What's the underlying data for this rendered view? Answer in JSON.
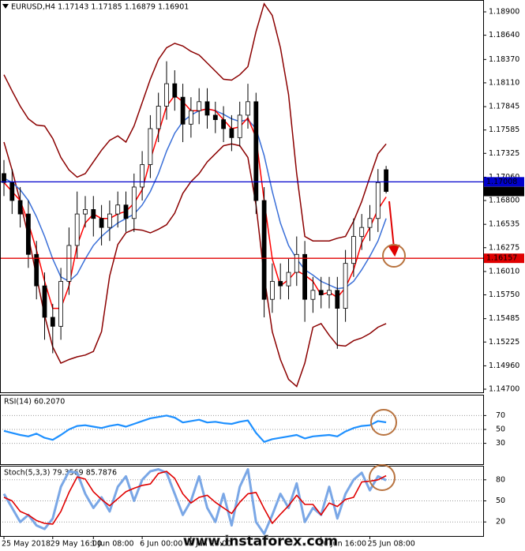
{
  "chart_data": [
    {
      "type": "candlestick",
      "title": "EURUSD,H4  1.17143 1.17185 1.16879 1.16901",
      "categories": [
        "25 May 2018",
        null,
        null,
        null,
        null,
        null,
        "29 May 16:00",
        null,
        null,
        null,
        null,
        "1 Jun 08:00",
        null,
        null,
        null,
        null,
        null,
        "6 Jun 00:00",
        null,
        null,
        null,
        null,
        null,
        "8 Jun 16:00",
        null,
        null,
        null,
        null,
        null,
        null,
        null,
        null,
        null,
        null,
        null,
        null,
        null,
        null,
        null,
        "20 Jun 16:00",
        null,
        null,
        null,
        null,
        null,
        "25 Jun 08:00",
        null,
        null
      ],
      "open": [
        1.171,
        1.17,
        1.168,
        1.1665,
        1.162,
        1.1585,
        1.155,
        1.154,
        1.159,
        1.163,
        1.1665,
        1.167,
        1.166,
        1.165,
        1.1665,
        1.1675,
        1.166,
        1.1695,
        1.172,
        1.176,
        1.1785,
        1.181,
        1.1795,
        1.1765,
        1.178,
        1.179,
        1.1775,
        1.177,
        1.176,
        1.175,
        1.1775,
        1.179,
        1.168,
        1.157,
        1.159,
        1.1585,
        1.16,
        1.162,
        1.157,
        1.158,
        1.1575,
        1.158,
        1.156,
        1.161,
        1.164,
        1.165,
        1.166,
        1.17143
      ],
      "high": [
        1.1725,
        1.1715,
        1.1695,
        1.168,
        1.1635,
        1.16,
        1.1565,
        1.1605,
        1.165,
        1.169,
        1.1685,
        1.1685,
        1.1675,
        1.168,
        1.169,
        1.169,
        1.171,
        1.1735,
        1.1775,
        1.18,
        1.1835,
        1.1825,
        1.181,
        1.1795,
        1.1805,
        1.1805,
        1.179,
        1.1785,
        1.1775,
        1.179,
        1.181,
        1.18,
        1.1695,
        1.161,
        1.161,
        1.1615,
        1.164,
        1.1635,
        1.1595,
        1.1595,
        1.1595,
        1.1595,
        1.1625,
        1.166,
        1.1665,
        1.1675,
        1.1715,
        1.17185
      ],
      "low": [
        1.1685,
        1.1665,
        1.165,
        1.1605,
        1.157,
        1.1525,
        1.151,
        1.1525,
        1.1575,
        1.1615,
        1.165,
        1.164,
        1.163,
        1.1635,
        1.165,
        1.1645,
        1.1645,
        1.168,
        1.1705,
        1.1745,
        1.177,
        1.178,
        1.1745,
        1.175,
        1.1765,
        1.176,
        1.1755,
        1.1745,
        1.1735,
        1.174,
        1.176,
        1.1665,
        1.155,
        1.1555,
        1.157,
        1.157,
        1.1585,
        1.1545,
        1.1555,
        1.156,
        1.156,
        1.1515,
        1.1545,
        1.1595,
        1.1625,
        1.1635,
        1.1645,
        1.16879
      ],
      "close": [
        1.17,
        1.168,
        1.1665,
        1.162,
        1.1585,
        1.155,
        1.154,
        1.159,
        1.163,
        1.1665,
        1.167,
        1.166,
        1.165,
        1.1665,
        1.1675,
        1.166,
        1.1695,
        1.172,
        1.176,
        1.1785,
        1.181,
        1.1795,
        1.1765,
        1.178,
        1.179,
        1.1775,
        1.177,
        1.176,
        1.175,
        1.1775,
        1.179,
        1.168,
        1.157,
        1.159,
        1.1585,
        1.16,
        1.162,
        1.157,
        1.158,
        1.1575,
        1.158,
        1.156,
        1.161,
        1.164,
        1.165,
        1.166,
        1.17,
        1.16901
      ],
      "overlays": [
        {
          "color": "#8b0000",
          "values": [
            1.182,
            1.1802,
            1.1785,
            1.1771,
            1.1764,
            1.1763,
            1.1749,
            1.1728,
            1.1714,
            1.1706,
            1.171,
            1.1723,
            1.1736,
            1.1747,
            1.1752,
            1.1745,
            1.1763,
            1.1789,
            1.1815,
            1.1837,
            1.185,
            1.1855,
            1.1852,
            1.1846,
            1.1842,
            1.1833,
            1.1824,
            1.1815,
            1.1814,
            1.182,
            1.1829,
            1.1868,
            1.1899,
            1.1886,
            1.185,
            1.1798,
            1.171,
            1.164,
            1.1635,
            1.1635,
            1.1635,
            1.1638,
            1.164,
            1.1657,
            1.1679,
            1.1706,
            1.1732,
            1.1743
          ]
        },
        {
          "color": "#8b0000",
          "values": [
            1.1745,
            1.1714,
            1.1679,
            1.164,
            1.1596,
            1.1552,
            1.1517,
            1.1499,
            1.1503,
            1.1506,
            1.1508,
            1.1512,
            1.1534,
            1.1596,
            1.1631,
            1.1644,
            1.1648,
            1.1647,
            1.1644,
            1.1648,
            1.1653,
            1.1666,
            1.1688,
            1.1701,
            1.171,
            1.1723,
            1.1732,
            1.1741,
            1.1743,
            1.1741,
            1.1728,
            1.1675,
            1.1596,
            1.1534,
            1.1503,
            1.1481,
            1.1473,
            1.1499,
            1.1539,
            1.1543,
            1.153,
            1.1519,
            1.1518,
            1.1524,
            1.1527,
            1.1532,
            1.1539,
            1.1543
          ]
        },
        {
          "color": "#3a6fd8",
          "values": [
            1.1705,
            1.17,
            1.1692,
            1.168,
            1.1662,
            1.164,
            1.1615,
            1.1595,
            1.159,
            1.1598,
            1.1615,
            1.163,
            1.164,
            1.1648,
            1.1655,
            1.166,
            1.1665,
            1.1675,
            1.169,
            1.171,
            1.1735,
            1.1755,
            1.1768,
            1.1775,
            1.178,
            1.1782,
            1.178,
            1.1776,
            1.1771,
            1.1768,
            1.177,
            1.176,
            1.173,
            1.169,
            1.1655,
            1.163,
            1.1615,
            1.1603,
            1.1597,
            1.159,
            1.1586,
            1.1582,
            1.1583,
            1.159,
            1.1603,
            1.1618,
            1.1635,
            1.166
          ]
        },
        {
          "color": "#ff0000",
          "values": [
            1.17,
            1.169,
            1.168,
            1.1655,
            1.1625,
            1.159,
            1.156,
            1.156,
            1.1585,
            1.163,
            1.1655,
            1.1665,
            1.166,
            1.166,
            1.1665,
            1.1668,
            1.1677,
            1.1692,
            1.1725,
            1.1755,
            1.1785,
            1.1797,
            1.179,
            1.178,
            1.178,
            1.1782,
            1.178,
            1.177,
            1.176,
            1.1762,
            1.1772,
            1.175,
            1.168,
            1.1615,
            1.1585,
            1.1592,
            1.1602,
            1.1597,
            1.159,
            1.1575,
            1.1578,
            1.1572,
            1.1583,
            1.1603,
            1.1633,
            1.165,
            1.167,
            1.1684
          ]
        }
      ],
      "ylim": [
        1.14665,
        1.19032
      ],
      "yticks": [
        {
          "value": 1.189,
          "label": "1.18900"
        },
        {
          "value": 1.1864,
          "label": "1.18640"
        },
        {
          "value": 1.1837,
          "label": "1.18370"
        },
        {
          "value": 1.1811,
          "label": "1.18110"
        },
        1.17845,
        1.17585,
        1.17325,
        {
          "value": 1.1706,
          "label": "1.17060"
        },
        {
          "value": 1.168,
          "label": "1.16800"
        },
        1.16535,
        1.16275,
        {
          "value": 1.1601,
          "label": "1.16010"
        },
        {
          "value": 1.1575,
          "label": "1.15750"
        },
        1.15485,
        1.15225,
        {
          "value": 1.1496,
          "label": "1.14960"
        },
        {
          "value": 1.147,
          "label": "1.14700"
        }
      ],
      "levels": [
        {
          "value": 1.17008,
          "color": "#0000cc"
        },
        {
          "value": 1.16157,
          "color": "#e00000"
        }
      ],
      "last_price": 1.16901
    },
    {
      "type": "line",
      "title": "RSI(14) 60.2070",
      "series": [
        {
          "color": "#1e90ff",
          "values": [
            48,
            45,
            42,
            40,
            44,
            38,
            35,
            42,
            50,
            55,
            56,
            54,
            52,
            55,
            57,
            54,
            58,
            62,
            66,
            68,
            70,
            67,
            60,
            62,
            64,
            60,
            61,
            59,
            58,
            61,
            63,
            45,
            32,
            36,
            38,
            40,
            42,
            37,
            40,
            41,
            42,
            40,
            47,
            52,
            55,
            56,
            62,
            60.207
          ]
        }
      ],
      "ylim": [
        0,
        100
      ],
      "yticks": [
        70,
        50,
        30
      ],
      "grid": true
    },
    {
      "type": "line",
      "title": "Stoch(5,3,3) 79.3569 85.7876",
      "series": [
        {
          "color": "#7aa7e6",
          "values": [
            60,
            40,
            20,
            30,
            15,
            10,
            25,
            70,
            92,
            90,
            60,
            40,
            55,
            35,
            70,
            85,
            50,
            80,
            92,
            95,
            90,
            60,
            30,
            50,
            85,
            40,
            20,
            60,
            15,
            70,
            95,
            20,
            3,
            30,
            60,
            40,
            75,
            20,
            40,
            30,
            70,
            25,
            60,
            80,
            90,
            65,
            85,
            79.3569
          ]
        },
        {
          "color": "#e00000",
          "values": [
            55,
            50,
            35,
            30,
            22,
            18,
            17,
            35,
            62,
            84,
            81,
            63,
            52,
            43,
            53,
            63,
            68,
            72,
            74,
            89,
            92,
            82,
            60,
            47,
            55,
            58,
            48,
            40,
            32,
            48,
            60,
            62,
            39,
            18,
            31,
            43,
            58,
            45,
            45,
            30,
            47,
            42,
            52,
            55,
            77,
            78,
            80,
            85.7876
          ]
        }
      ],
      "ylim": [
        0,
        100
      ],
      "yticks": [
        80,
        50,
        20
      ],
      "grid": true
    }
  ],
  "watermark": "www.instaforex.com"
}
